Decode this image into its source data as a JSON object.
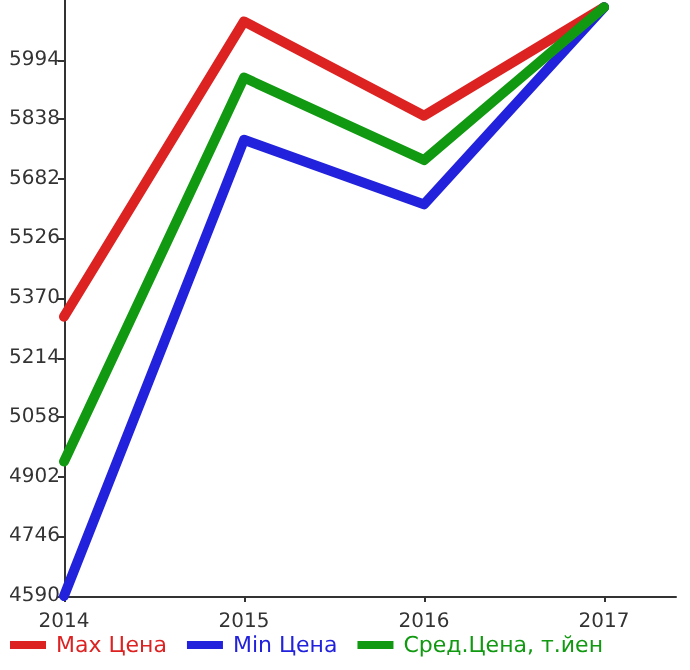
{
  "chart_data": {
    "type": "line",
    "x": [
      2014,
      2015,
      2016,
      2017
    ],
    "xlim": [
      2014,
      2017.4
    ],
    "xticks": [
      2014,
      2015,
      2016,
      2017
    ],
    "ylim": [
      4590,
      6150
    ],
    "yticks": [
      4590,
      4746,
      4902,
      5058,
      5214,
      5370,
      5526,
      5682,
      5838,
      5994
    ],
    "series": [
      {
        "name": "Max Цена",
        "color": "#dd2222",
        "values": [
          5321,
          6094,
          5847,
          6131
        ]
      },
      {
        "name": "Min Цена",
        "color": "#2222dd",
        "values": [
          4590,
          5784,
          5615,
          6131
        ]
      },
      {
        "name": "Сред.Цена, т.йен",
        "color": "#119911",
        "values": [
          4942,
          5947,
          5731,
          6131
        ]
      }
    ],
    "grid": false,
    "legend": "bottom",
    "marker": "none",
    "line_style": "solid"
  }
}
